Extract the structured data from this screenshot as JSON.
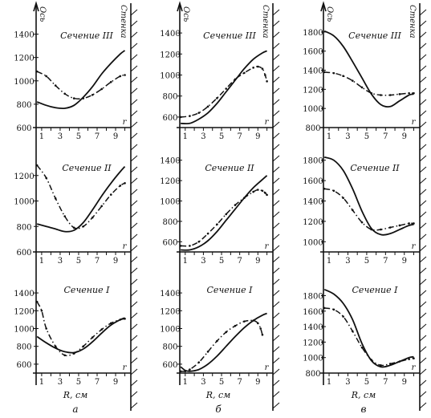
{
  "chart_data": {
    "type": "line",
    "axis_label": "Ось",
    "wall_label": "Стенка",
    "x_axis_label": "R, см",
    "x_ticks": [
      "1",
      "3",
      "5",
      "7",
      "9"
    ],
    "columns": [
      {
        "caption": "а",
        "panels": [
          {
            "title": "Сечение III",
            "yticks": [
              600,
              800,
              1000,
              1200,
              1400
            ],
            "ylim": [
              600,
              1500
            ],
            "series": [
              {
                "style": "solid",
                "x": [
                  0.5,
                  1.5,
                  2.5,
                  3.5,
                  4.5,
                  5.5,
                  6.5,
                  7.5,
                  8.5,
                  9.5,
                  10.0
                ],
                "y": [
                  820,
                  790,
                  770,
                  765,
                  790,
                  860,
                  950,
                  1060,
                  1150,
                  1230,
                  1260
                ]
              },
              {
                "style": "dashdot",
                "x": [
                  0.5,
                  1.5,
                  2.5,
                  3.5,
                  4.5,
                  5.5,
                  6.5,
                  7.5,
                  8.5,
                  9.5,
                  10.0
                ],
                "y": [
                  1080,
                  1040,
                  960,
                  890,
                  850,
                  850,
                  880,
                  930,
                  990,
                  1040,
                  1050
                ]
              }
            ]
          },
          {
            "title": "Сечение II",
            "yticks": [
              600,
              800,
              1000,
              1200
            ],
            "ylim": [
              600,
              1400
            ],
            "series": [
              {
                "style": "solid",
                "x": [
                  0.5,
                  1.5,
                  2.5,
                  3.5,
                  4.5,
                  5.5,
                  6.5,
                  7.5,
                  8.5,
                  9.5,
                  10.0
                ],
                "y": [
                  820,
                  800,
                  780,
                  760,
                  770,
                  830,
                  930,
                  1040,
                  1140,
                  1230,
                  1270
                ]
              },
              {
                "style": "dashdot",
                "x": [
                  0.5,
                  1.5,
                  2.5,
                  3.5,
                  4.5,
                  5.5,
                  6.5,
                  7.5,
                  8.5,
                  9.5,
                  10.0
                ],
                "y": [
                  1280,
                  1180,
                  1020,
                  880,
                  790,
                  800,
                  870,
                  960,
                  1050,
                  1120,
                  1140
                ]
              }
            ]
          },
          {
            "title": "Сечение I",
            "yticks": [
              600,
              800,
              1000,
              1200,
              1400
            ],
            "ylim": [
              500,
              1500
            ],
            "series": [
              {
                "style": "solid",
                "x": [
                  0.5,
                  1.5,
                  2.5,
                  3.5,
                  4.5,
                  5.5,
                  6.5,
                  7.5,
                  8.5,
                  9.5,
                  10.0
                ],
                "y": [
                  910,
                  840,
                  780,
                  740,
                  730,
                  770,
                  850,
                  950,
                  1040,
                  1100,
                  1120
                ]
              },
              {
                "style": "dashdot",
                "x": [
                  0.5,
                  1.0,
                  1.5,
                  2.5,
                  3.5,
                  4.5,
                  5.5,
                  6.5,
                  7.5,
                  8.5,
                  9.5,
                  10.0
                ],
                "y": [
                  1300,
                  1200,
                  1000,
                  800,
                  700,
                  720,
                  800,
                  900,
                  990,
                  1060,
                  1100,
                  1110
                ]
              }
            ]
          }
        ]
      },
      {
        "caption": "б",
        "panels": [
          {
            "title": "Сечение III",
            "yticks": [
              600,
              800,
              1000,
              1200,
              1400
            ],
            "ylim": [
              500,
              1500
            ],
            "series": [
              {
                "style": "solid",
                "x": [
                  0.5,
                  1.5,
                  2.5,
                  3.5,
                  4.5,
                  5.5,
                  6.5,
                  7.5,
                  8.5,
                  9.5,
                  10.0
                ],
                "y": [
                  540,
                  540,
                  580,
                  640,
                  730,
                  840,
                  950,
                  1060,
                  1150,
                  1210,
                  1230
                ]
              },
              {
                "style": "dashdot",
                "x": [
                  0.5,
                  1.5,
                  2.5,
                  3.5,
                  4.5,
                  5.5,
                  6.5,
                  7.5,
                  8.5,
                  9.0,
                  9.5,
                  9.8,
                  10.0
                ],
                "y": [
                  600,
                  610,
                  640,
                  700,
                  780,
                  870,
                  960,
                  1020,
                  1070,
                  1080,
                  1060,
                  1000,
                  940
                ]
              }
            ]
          },
          {
            "title": "Сечение II",
            "yticks": [
              600,
              800,
              1000,
              1200,
              1400
            ],
            "ylim": [
              500,
              1500
            ],
            "series": [
              {
                "style": "solid",
                "x": [
                  0.5,
                  1.5,
                  2.5,
                  3.5,
                  4.5,
                  5.5,
                  6.5,
                  7.5,
                  8.5,
                  9.5,
                  10.0
                ],
                "y": [
                  520,
                  520,
                  550,
                  610,
                  700,
                  810,
                  920,
                  1030,
                  1130,
                  1210,
                  1250
                ]
              },
              {
                "style": "dashdot",
                "x": [
                  0.5,
                  1.5,
                  2.5,
                  3.5,
                  4.5,
                  5.5,
                  6.5,
                  7.5,
                  8.5,
                  9.0,
                  9.5,
                  9.8,
                  10.0
                ],
                "y": [
                  560,
                  560,
                  600,
                  680,
                  770,
                  870,
                  960,
                  1030,
                  1090,
                  1110,
                  1100,
                  1080,
                  1060
                ]
              }
            ]
          },
          {
            "title": "Сечение I",
            "yticks": [
              600,
              800,
              1000,
              1200,
              1400
            ],
            "ylim": [
              500,
              1500
            ],
            "series": [
              {
                "style": "solid",
                "x": [
                  0.5,
                  1.0,
                  1.5,
                  2.5,
                  3.5,
                  4.5,
                  5.5,
                  6.5,
                  7.5,
                  8.5,
                  9.5,
                  10.0
                ],
                "y": [
                  570,
                  530,
                  520,
                  540,
                  600,
                  690,
                  800,
                  910,
                  1010,
                  1090,
                  1150,
                  1170
                ]
              },
              {
                "style": "dashdot",
                "x": [
                  0.5,
                  1.0,
                  1.5,
                  2.5,
                  3.5,
                  4.5,
                  5.5,
                  6.5,
                  7.5,
                  8.5,
                  9.0,
                  9.3,
                  9.5
                ],
                "y": [
                  520,
                  520,
                  540,
                  620,
                  740,
                  860,
                  960,
                  1030,
                  1080,
                  1090,
                  1060,
                  1000,
                  930
                ]
              }
            ]
          }
        ]
      },
      {
        "caption": "в",
        "panels": [
          {
            "title": "Сечение III",
            "yticks": [
              800,
              1000,
              1200,
              1400,
              1600,
              1800
            ],
            "ylim": [
              800,
              1900
            ],
            "series": [
              {
                "style": "solid",
                "x": [
                  0.5,
                  1.5,
                  2.5,
                  3.5,
                  4.5,
                  5.5,
                  6.5,
                  7.5,
                  8.5,
                  9.5,
                  10.0
                ],
                "y": [
                  1810,
                  1760,
                  1650,
                  1490,
                  1320,
                  1150,
                  1040,
                  1020,
                  1080,
                  1140,
                  1150
                ]
              },
              {
                "style": "dashdot",
                "x": [
                  0.5,
                  1.5,
                  2.5,
                  3.5,
                  4.5,
                  5.5,
                  6.5,
                  7.5,
                  8.5,
                  9.5,
                  10.0
                ],
                "y": [
                  1380,
                  1370,
                  1340,
                  1290,
                  1220,
                  1160,
                  1140,
                  1140,
                  1150,
                  1160,
                  1160
                ]
              }
            ]
          },
          {
            "title": "Сечение II",
            "yticks": [
              1000,
              1200,
              1400,
              1600,
              1800
            ],
            "ylim": [
              900,
              1900
            ],
            "series": [
              {
                "style": "solid",
                "x": [
                  0.5,
                  1.5,
                  2.5,
                  3.5,
                  4.5,
                  5.5,
                  6.5,
                  7.5,
                  8.5,
                  9.5,
                  10.0
                ],
                "y": [
                  1830,
                  1800,
                  1700,
                  1520,
                  1300,
                  1130,
                  1070,
                  1080,
                  1120,
                  1160,
                  1170
                ]
              },
              {
                "style": "dashdot",
                "x": [
                  0.5,
                  1.5,
                  2.5,
                  3.5,
                  4.5,
                  5.5,
                  6.5,
                  7.5,
                  8.5,
                  9.5,
                  10.0
                ],
                "y": [
                  1520,
                  1500,
                  1430,
                  1310,
                  1190,
                  1120,
                  1120,
                  1140,
                  1160,
                  1180,
                  1180
                ]
              }
            ]
          },
          {
            "title": "Сечение I",
            "yticks": [
              800,
              1000,
              1200,
              1400,
              1600,
              1800
            ],
            "ylim": [
              800,
              1950
            ],
            "series": [
              {
                "style": "solid",
                "x": [
                  0.5,
                  1.5,
                  2.5,
                  3.5,
                  4.5,
                  5.5,
                  6.5,
                  7.5,
                  8.5,
                  9.5,
                  10.0
                ],
                "y": [
                  1880,
                  1820,
                  1700,
                  1490,
                  1180,
                  960,
                  880,
                  900,
                  950,
                  1000,
                  1010
                ]
              },
              {
                "style": "dashdot",
                "x": [
                  0.5,
                  1.5,
                  2.5,
                  3.5,
                  4.5,
                  5.5,
                  6.5,
                  7.5,
                  8.5,
                  9.5,
                  10.0
                ],
                "y": [
                  1640,
                  1620,
                  1530,
                  1340,
                  1130,
                  970,
                  900,
                  920,
                  950,
                  980,
                  990
                ]
              }
            ]
          }
        ]
      }
    ]
  }
}
